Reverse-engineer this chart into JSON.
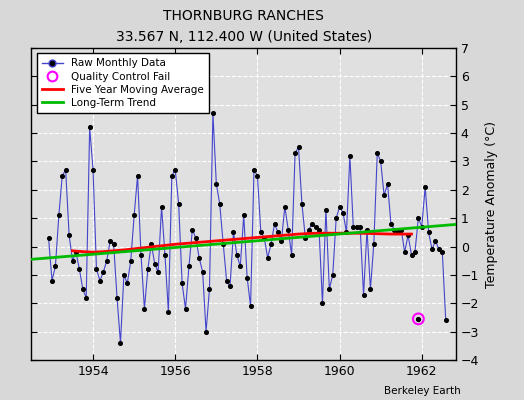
{
  "title": "THORNBURG RANCHES",
  "subtitle": "33.567 N, 112.400 W (United States)",
  "ylabel": "Temperature Anomaly (°C)",
  "attribution": "Berkeley Earth",
  "ylim": [
    -4,
    7
  ],
  "xlim": [
    1952.5,
    1962.83
  ],
  "yticks": [
    -4,
    -3,
    -2,
    -1,
    0,
    1,
    2,
    3,
    4,
    5,
    6,
    7
  ],
  "xticks": [
    1954,
    1956,
    1958,
    1960,
    1962
  ],
  "bg_color": "#d8d8d8",
  "plot_bg_color": "#e0e0e0",
  "grid_color": "#ffffff",
  "raw_line_color": "#4444cc",
  "raw_marker_color": "#000000",
  "moving_avg_color": "#ff0000",
  "trend_color": "#00bb00",
  "qc_fail_color": "#ff00ff",
  "raw_data": [
    [
      1952.917,
      0.3
    ],
    [
      1953.0,
      -1.2
    ],
    [
      1953.083,
      -0.7
    ],
    [
      1953.167,
      1.1
    ],
    [
      1953.25,
      2.5
    ],
    [
      1953.333,
      2.7
    ],
    [
      1953.417,
      0.4
    ],
    [
      1953.5,
      -0.5
    ],
    [
      1953.583,
      -0.2
    ],
    [
      1953.667,
      -0.8
    ],
    [
      1953.75,
      -1.5
    ],
    [
      1953.833,
      -1.8
    ],
    [
      1953.917,
      4.2
    ],
    [
      1954.0,
      2.7
    ],
    [
      1954.083,
      -0.8
    ],
    [
      1954.167,
      -1.2
    ],
    [
      1954.25,
      -0.9
    ],
    [
      1954.333,
      -0.5
    ],
    [
      1954.417,
      0.2
    ],
    [
      1954.5,
      0.1
    ],
    [
      1954.583,
      -1.8
    ],
    [
      1954.667,
      -3.4
    ],
    [
      1954.75,
      -1.0
    ],
    [
      1954.833,
      -1.3
    ],
    [
      1954.917,
      -0.5
    ],
    [
      1955.0,
      1.1
    ],
    [
      1955.083,
      2.5
    ],
    [
      1955.167,
      -0.3
    ],
    [
      1955.25,
      -2.2
    ],
    [
      1955.333,
      -0.8
    ],
    [
      1955.417,
      0.1
    ],
    [
      1955.5,
      -0.6
    ],
    [
      1955.583,
      -0.9
    ],
    [
      1955.667,
      1.4
    ],
    [
      1955.75,
      -0.3
    ],
    [
      1955.833,
      -2.3
    ],
    [
      1955.917,
      2.5
    ],
    [
      1956.0,
      2.7
    ],
    [
      1956.083,
      1.5
    ],
    [
      1956.167,
      -1.3
    ],
    [
      1956.25,
      -2.2
    ],
    [
      1956.333,
      -0.7
    ],
    [
      1956.417,
      0.6
    ],
    [
      1956.5,
      0.3
    ],
    [
      1956.583,
      -0.4
    ],
    [
      1956.667,
      -0.9
    ],
    [
      1956.75,
      -3.0
    ],
    [
      1956.833,
      -1.5
    ],
    [
      1956.917,
      4.7
    ],
    [
      1957.0,
      2.2
    ],
    [
      1957.083,
      1.5
    ],
    [
      1957.167,
      0.1
    ],
    [
      1957.25,
      -1.2
    ],
    [
      1957.333,
      -1.4
    ],
    [
      1957.417,
      0.5
    ],
    [
      1957.5,
      -0.3
    ],
    [
      1957.583,
      -0.7
    ],
    [
      1957.667,
      1.1
    ],
    [
      1957.75,
      -1.1
    ],
    [
      1957.833,
      -2.1
    ],
    [
      1957.917,
      2.7
    ],
    [
      1958.0,
      2.5
    ],
    [
      1958.083,
      0.5
    ],
    [
      1958.167,
      0.3
    ],
    [
      1958.25,
      -0.4
    ],
    [
      1958.333,
      0.1
    ],
    [
      1958.417,
      0.8
    ],
    [
      1958.5,
      0.5
    ],
    [
      1958.583,
      0.2
    ],
    [
      1958.667,
      1.4
    ],
    [
      1958.75,
      0.6
    ],
    [
      1958.833,
      -0.3
    ],
    [
      1958.917,
      3.3
    ],
    [
      1959.0,
      3.5
    ],
    [
      1959.083,
      1.5
    ],
    [
      1959.167,
      0.3
    ],
    [
      1959.25,
      0.6
    ],
    [
      1959.333,
      0.8
    ],
    [
      1959.417,
      0.7
    ],
    [
      1959.5,
      0.6
    ],
    [
      1959.583,
      -2.0
    ],
    [
      1959.667,
      1.3
    ],
    [
      1959.75,
      -1.5
    ],
    [
      1959.833,
      -1.0
    ],
    [
      1959.917,
      1.0
    ],
    [
      1960.0,
      1.4
    ],
    [
      1960.083,
      1.2
    ],
    [
      1960.167,
      0.5
    ],
    [
      1960.25,
      3.2
    ],
    [
      1960.333,
      0.7
    ],
    [
      1960.417,
      0.7
    ],
    [
      1960.5,
      0.7
    ],
    [
      1960.583,
      -1.7
    ],
    [
      1960.667,
      0.6
    ],
    [
      1960.75,
      -1.5
    ],
    [
      1960.833,
      0.1
    ],
    [
      1960.917,
      3.3
    ],
    [
      1961.0,
      3.0
    ],
    [
      1961.083,
      1.8
    ],
    [
      1961.167,
      2.2
    ],
    [
      1961.25,
      0.8
    ],
    [
      1961.333,
      0.6
    ],
    [
      1961.417,
      0.5
    ],
    [
      1961.5,
      0.6
    ],
    [
      1961.583,
      -0.2
    ],
    [
      1961.667,
      0.4
    ],
    [
      1961.75,
      -0.3
    ],
    [
      1961.833,
      -0.2
    ],
    [
      1961.917,
      1.0
    ],
    [
      1962.0,
      0.7
    ],
    [
      1962.083,
      2.1
    ],
    [
      1962.167,
      0.5
    ],
    [
      1962.25,
      -0.1
    ],
    [
      1962.333,
      0.2
    ],
    [
      1962.417,
      -0.1
    ],
    [
      1962.5,
      -0.2
    ],
    [
      1962.583,
      -2.6
    ]
  ],
  "moving_avg": [
    [
      1953.5,
      -0.15
    ],
    [
      1953.75,
      -0.18
    ],
    [
      1954.0,
      -0.2
    ],
    [
      1954.25,
      -0.18
    ],
    [
      1954.5,
      -0.15
    ],
    [
      1954.75,
      -0.12
    ],
    [
      1955.0,
      -0.08
    ],
    [
      1955.25,
      -0.04
    ],
    [
      1955.5,
      0.0
    ],
    [
      1955.75,
      0.04
    ],
    [
      1956.0,
      0.08
    ],
    [
      1956.25,
      0.11
    ],
    [
      1956.5,
      0.14
    ],
    [
      1956.75,
      0.17
    ],
    [
      1957.0,
      0.2
    ],
    [
      1957.25,
      0.23
    ],
    [
      1957.5,
      0.26
    ],
    [
      1957.75,
      0.29
    ],
    [
      1958.0,
      0.32
    ],
    [
      1958.25,
      0.35
    ],
    [
      1958.5,
      0.38
    ],
    [
      1958.75,
      0.41
    ],
    [
      1959.0,
      0.44
    ],
    [
      1959.25,
      0.46
    ],
    [
      1959.5,
      0.47
    ],
    [
      1959.75,
      0.47
    ],
    [
      1960.0,
      0.47
    ],
    [
      1960.25,
      0.47
    ],
    [
      1960.5,
      0.47
    ],
    [
      1960.75,
      0.46
    ],
    [
      1961.0,
      0.45
    ],
    [
      1961.25,
      0.44
    ],
    [
      1961.5,
      0.44
    ],
    [
      1961.75,
      0.44
    ]
  ],
  "trend": {
    "x": [
      1952.5,
      1962.83
    ],
    "y": [
      -0.45,
      0.78
    ]
  },
  "qc_fail_points": [
    [
      1961.917,
      -2.55
    ]
  ]
}
